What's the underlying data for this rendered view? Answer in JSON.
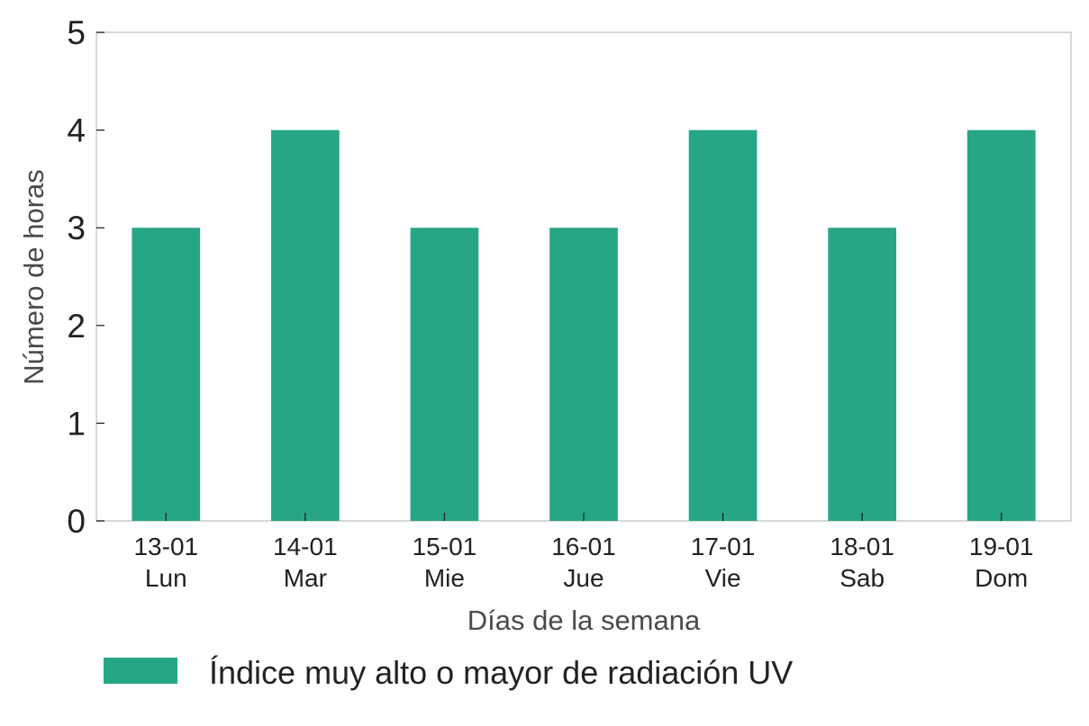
{
  "chart_data": {
    "type": "bar",
    "categories": [
      {
        "date": "13-01",
        "day": "Lun"
      },
      {
        "date": "14-01",
        "day": "Mar"
      },
      {
        "date": "15-01",
        "day": "Mie"
      },
      {
        "date": "16-01",
        "day": "Jue"
      },
      {
        "date": "17-01",
        "day": "Vie"
      },
      {
        "date": "18-01",
        "day": "Sab"
      },
      {
        "date": "19-01",
        "day": "Dom"
      }
    ],
    "series": [
      {
        "name": "Índice muy alto o mayor de radiación UV",
        "values": [
          3,
          4,
          3,
          3,
          4,
          3,
          4
        ],
        "color": "#27a685"
      }
    ],
    "xlabel": "Días de la semana",
    "ylabel": "Número de horas",
    "ylim": [
      0,
      5
    ],
    "yticks": [
      0,
      1,
      2,
      3,
      4,
      5
    ],
    "grid": false,
    "legend_position": "bottom"
  }
}
